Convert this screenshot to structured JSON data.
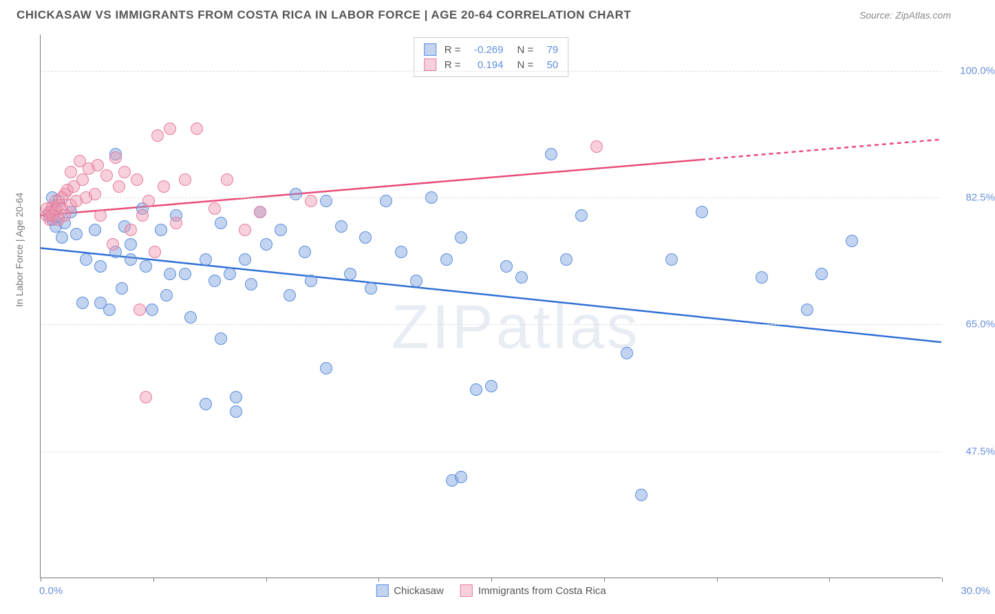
{
  "title": "CHICKASAW VS IMMIGRANTS FROM COSTA RICA IN LABOR FORCE | AGE 20-64 CORRELATION CHART",
  "source": "Source: ZipAtlas.com",
  "watermark": "ZIPatlas",
  "chart": {
    "type": "scatter",
    "xlim": [
      0,
      30
    ],
    "ylim": [
      30,
      105
    ],
    "x_ticks": [
      0,
      3.75,
      7.5,
      11.25,
      15,
      18.75,
      22.5,
      26.25,
      30
    ],
    "x_tick_labels": {
      "0": "0.0%",
      "30": "30.0%"
    },
    "y_gridlines": [
      47.5,
      65.0,
      82.5,
      100.0
    ],
    "y_tick_labels": [
      "47.5%",
      "65.0%",
      "82.5%",
      "100.0%"
    ],
    "ylabel": "In Labor Force | Age 20-64",
    "background_color": "#ffffff",
    "grid_color": "#dddddd",
    "axis_color": "#777777",
    "tick_label_color": "#6a8fd8",
    "point_radius": 9,
    "series": [
      {
        "name": "Chickasaw",
        "label": "Chickasaw",
        "fill": "rgba(120,160,220,0.45)",
        "stroke": "#5b8de0",
        "correlation": -0.269,
        "n": 79,
        "trend": {
          "x1": 0,
          "y1": 75.5,
          "x2": 30,
          "y2": 62.5,
          "color": "#2f6fd6",
          "width": 2.5,
          "dash_after_x": null
        },
        "points": [
          [
            0.3,
            80.5
          ],
          [
            0.4,
            79.5
          ],
          [
            0.3,
            80.0
          ],
          [
            0.5,
            78.5
          ],
          [
            0.6,
            79.8
          ],
          [
            0.5,
            81.0
          ],
          [
            0.8,
            79.0
          ],
          [
            0.7,
            77.0
          ],
          [
            1.0,
            80.5
          ],
          [
            0.4,
            82.5
          ],
          [
            0.6,
            82.0
          ],
          [
            1.2,
            77.5
          ],
          [
            1.4,
            68.0
          ],
          [
            1.5,
            74.0
          ],
          [
            1.8,
            78.0
          ],
          [
            2.0,
            73.0
          ],
          [
            2.0,
            68.0
          ],
          [
            2.3,
            67.0
          ],
          [
            2.5,
            75.0
          ],
          [
            2.5,
            88.5
          ],
          [
            2.7,
            70.0
          ],
          [
            2.8,
            78.5
          ],
          [
            3.0,
            76.0
          ],
          [
            3.0,
            74.0
          ],
          [
            3.4,
            81.0
          ],
          [
            3.5,
            73.0
          ],
          [
            3.7,
            67.0
          ],
          [
            4.0,
            78.0
          ],
          [
            4.2,
            69.0
          ],
          [
            4.3,
            72.0
          ],
          [
            4.5,
            80.0
          ],
          [
            4.8,
            72.0
          ],
          [
            5.0,
            66.0
          ],
          [
            5.5,
            54.0
          ],
          [
            5.5,
            74.0
          ],
          [
            5.8,
            71.0
          ],
          [
            6.0,
            63.0
          ],
          [
            6.0,
            79.0
          ],
          [
            6.3,
            72.0
          ],
          [
            6.5,
            53.0
          ],
          [
            6.5,
            55.0
          ],
          [
            6.8,
            74.0
          ],
          [
            7.0,
            70.5
          ],
          [
            7.3,
            80.5
          ],
          [
            7.5,
            76.0
          ],
          [
            8.0,
            78.0
          ],
          [
            8.3,
            69.0
          ],
          [
            8.5,
            83.0
          ],
          [
            8.8,
            75.0
          ],
          [
            9.0,
            71.0
          ],
          [
            9.5,
            82.0
          ],
          [
            9.5,
            59.0
          ],
          [
            10.0,
            78.5
          ],
          [
            10.3,
            72.0
          ],
          [
            10.8,
            77.0
          ],
          [
            11.0,
            70.0
          ],
          [
            11.5,
            82.0
          ],
          [
            12.0,
            75.0
          ],
          [
            12.5,
            71.0
          ],
          [
            13.0,
            82.5
          ],
          [
            13.5,
            74.0
          ],
          [
            13.7,
            43.5
          ],
          [
            14.0,
            77.0
          ],
          [
            14.0,
            44.0
          ],
          [
            14.5,
            56.0
          ],
          [
            15.0,
            56.5
          ],
          [
            15.5,
            73.0
          ],
          [
            16.0,
            71.5
          ],
          [
            17.0,
            88.5
          ],
          [
            17.5,
            74.0
          ],
          [
            18.0,
            80.0
          ],
          [
            19.5,
            61.0
          ],
          [
            20.0,
            41.5
          ],
          [
            21.0,
            74.0
          ],
          [
            22.0,
            80.5
          ],
          [
            24.0,
            71.5
          ],
          [
            25.5,
            67.0
          ],
          [
            26.0,
            72.0
          ],
          [
            27.0,
            76.5
          ]
        ]
      },
      {
        "name": "Immigrants from Costa Rica",
        "label": "Immigrants from Costa Rica",
        "fill": "rgba(240,150,175,0.45)",
        "stroke": "#e77b9a",
        "correlation": 0.194,
        "n": 50,
        "trend": {
          "x1": 0,
          "y1": 80.0,
          "x2": 30,
          "y2": 90.5,
          "color": "#e94b77",
          "width": 2.5,
          "dash_after_x": 22
        },
        "points": [
          [
            0.2,
            80.0
          ],
          [
            0.2,
            81.0
          ],
          [
            0.3,
            79.5
          ],
          [
            0.3,
            80.5
          ],
          [
            0.4,
            81.2
          ],
          [
            0.4,
            80.0
          ],
          [
            0.5,
            82.0
          ],
          [
            0.5,
            80.8
          ],
          [
            0.6,
            79.5
          ],
          [
            0.6,
            81.5
          ],
          [
            0.7,
            82.5
          ],
          [
            0.7,
            81.0
          ],
          [
            0.8,
            83.0
          ],
          [
            0.8,
            80.0
          ],
          [
            0.9,
            83.5
          ],
          [
            1.0,
            86.0
          ],
          [
            1.0,
            81.5
          ],
          [
            1.1,
            84.0
          ],
          [
            1.2,
            82.0
          ],
          [
            1.3,
            87.5
          ],
          [
            1.4,
            85.0
          ],
          [
            1.5,
            82.5
          ],
          [
            1.6,
            86.5
          ],
          [
            1.8,
            83.0
          ],
          [
            1.9,
            87.0
          ],
          [
            2.0,
            80.0
          ],
          [
            2.2,
            85.5
          ],
          [
            2.4,
            76.0
          ],
          [
            2.5,
            88.0
          ],
          [
            2.6,
            84.0
          ],
          [
            2.8,
            86.0
          ],
          [
            3.0,
            78.0
          ],
          [
            3.2,
            85.0
          ],
          [
            3.3,
            67.0
          ],
          [
            3.4,
            80.0
          ],
          [
            3.5,
            55.0
          ],
          [
            3.6,
            82.0
          ],
          [
            3.8,
            75.0
          ],
          [
            3.9,
            91.0
          ],
          [
            4.1,
            84.0
          ],
          [
            4.3,
            92.0
          ],
          [
            4.5,
            79.0
          ],
          [
            4.8,
            85.0
          ],
          [
            5.2,
            92.0
          ],
          [
            5.8,
            81.0
          ],
          [
            6.2,
            85.0
          ],
          [
            6.8,
            78.0
          ],
          [
            7.3,
            80.5
          ],
          [
            9.0,
            82.0
          ],
          [
            18.5,
            89.5
          ]
        ]
      }
    ]
  },
  "legend": {
    "r_label": "R =",
    "n_label": "N ="
  }
}
